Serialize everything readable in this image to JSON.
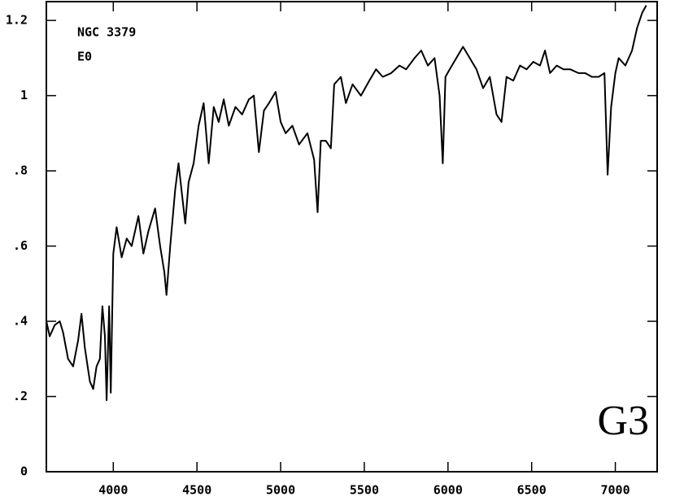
{
  "chart_data": {
    "type": "line",
    "annotations": [
      "NGC 3379",
      "E0",
      "G3"
    ],
    "x": [
      3600,
      3620,
      3650,
      3680,
      3700,
      3730,
      3760,
      3790,
      3810,
      3830,
      3860,
      3880,
      3900,
      3920,
      3935,
      3950,
      3960,
      3975,
      3985,
      4000,
      4020,
      4050,
      4080,
      4110,
      4150,
      4180,
      4210,
      4250,
      4280,
      4305,
      4318,
      4340,
      4370,
      4390,
      4430,
      4450,
      4480,
      4510,
      4540,
      4570,
      4600,
      4630,
      4660,
      4690,
      4730,
      4770,
      4810,
      4840,
      4870,
      4900,
      4930,
      4970,
      5000,
      5030,
      5070,
      5110,
      5160,
      5200,
      5221,
      5240,
      5270,
      5300,
      5320,
      5360,
      5390,
      5430,
      5480,
      5530,
      5570,
      5610,
      5660,
      5710,
      5750,
      5800,
      5840,
      5880,
      5920,
      5950,
      5969,
      5985,
      6010,
      6050,
      6090,
      6130,
      6170,
      6210,
      6250,
      6290,
      6320,
      6350,
      6390,
      6430,
      6470,
      6510,
      6550,
      6580,
      6610,
      6650,
      6690,
      6730,
      6780,
      6820,
      6860,
      6900,
      6935,
      6954,
      6975,
      7000,
      7020,
      7060,
      7100,
      7130,
      7160,
      7185
    ],
    "values": [
      0.4,
      0.36,
      0.39,
      0.4,
      0.37,
      0.3,
      0.28,
      0.35,
      0.42,
      0.33,
      0.24,
      0.22,
      0.28,
      0.3,
      0.44,
      0.36,
      0.19,
      0.44,
      0.21,
      0.58,
      0.65,
      0.57,
      0.62,
      0.6,
      0.68,
      0.58,
      0.64,
      0.7,
      0.6,
      0.53,
      0.47,
      0.6,
      0.75,
      0.82,
      0.66,
      0.77,
      0.82,
      0.92,
      0.98,
      0.82,
      0.97,
      0.93,
      0.99,
      0.92,
      0.97,
      0.95,
      0.99,
      1.0,
      0.85,
      0.96,
      0.98,
      1.01,
      0.93,
      0.9,
      0.92,
      0.87,
      0.9,
      0.83,
      0.69,
      0.88,
      0.88,
      0.86,
      1.03,
      1.05,
      0.98,
      1.03,
      1.0,
      1.04,
      1.07,
      1.05,
      1.06,
      1.08,
      1.07,
      1.1,
      1.12,
      1.08,
      1.1,
      1.0,
      0.82,
      1.05,
      1.07,
      1.1,
      1.13,
      1.1,
      1.07,
      1.02,
      1.05,
      0.95,
      0.93,
      1.05,
      1.04,
      1.08,
      1.07,
      1.09,
      1.08,
      1.12,
      1.06,
      1.08,
      1.07,
      1.07,
      1.06,
      1.06,
      1.05,
      1.05,
      1.06,
      0.79,
      0.97,
      1.06,
      1.1,
      1.08,
      1.12,
      1.18,
      1.22,
      1.24
    ],
    "color": "#000000",
    "xlim": [
      3600,
      7250
    ],
    "xticks": [
      4000,
      4500,
      5000,
      5500,
      6000,
      6500,
      7000
    ],
    "ylim": [
      0,
      1.25
    ],
    "yticks": [
      0,
      {
        "value": 0.2,
        "label": ".2"
      },
      {
        "value": 0.4,
        "label": ".4"
      },
      {
        "value": 0.6,
        "label": ".6"
      },
      {
        "value": 0.8,
        "label": ".8"
      },
      1,
      1.2
    ]
  }
}
